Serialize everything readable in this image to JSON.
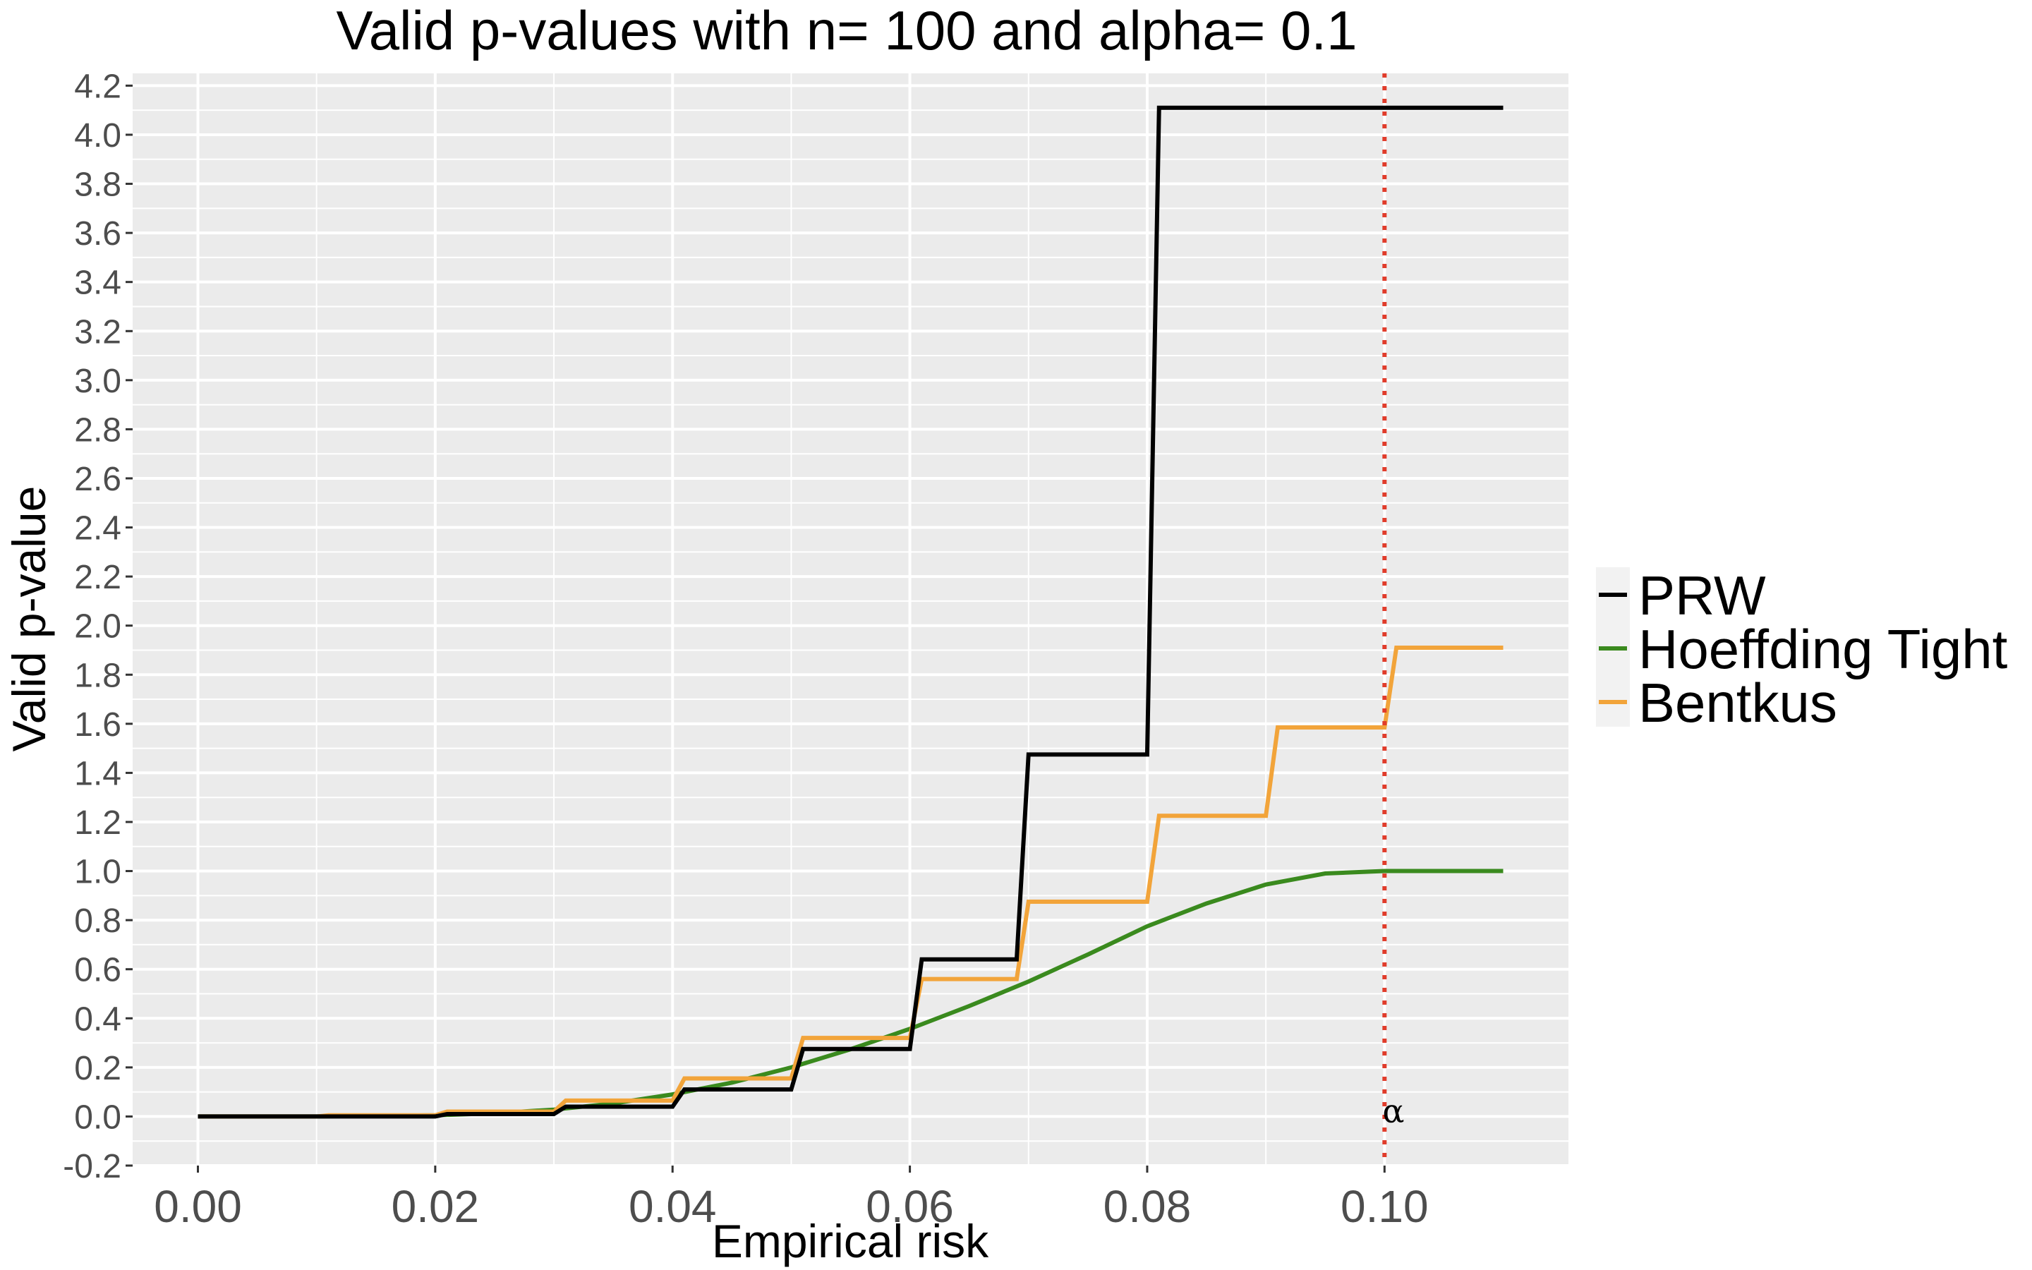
{
  "chart_data": {
    "type": "line",
    "title": "Valid p-values with n= 100  and alpha= 0.1",
    "xlabel": "Empirical risk",
    "ylabel": "Valid p-value",
    "xlim": [
      -0.0055,
      0.1155
    ],
    "ylim": [
      -0.2,
      4.25
    ],
    "x_ticks": [
      0.0,
      0.02,
      0.04,
      0.06,
      0.08,
      0.1
    ],
    "x_tick_labels": [
      "0.00",
      "0.02",
      "0.04",
      "0.06",
      "0.08",
      "0.10"
    ],
    "y_ticks": [
      -0.2,
      0.0,
      0.2,
      0.4,
      0.6,
      0.8,
      1.0,
      1.2,
      1.4,
      1.6,
      1.8,
      2.0,
      2.2,
      2.4,
      2.6,
      2.8,
      3.0,
      3.2,
      3.4,
      3.6,
      3.8,
      4.0,
      4.2
    ],
    "y_tick_labels": [
      "-0.2",
      "0.0",
      "0.2",
      "0.4",
      "0.6",
      "0.8",
      "1.0",
      "1.2",
      "1.4",
      "1.6",
      "1.8",
      "2.0",
      "2.2",
      "2.4",
      "2.6",
      "2.8",
      "3.0",
      "3.2",
      "3.4",
      "3.6",
      "3.8",
      "4.0",
      "4.2"
    ],
    "grid": true,
    "legend_position": "right",
    "series": [
      {
        "name": "PRW",
        "color": "#000000",
        "x": [
          0.0,
          0.02,
          0.021,
          0.03,
          0.031,
          0.04,
          0.041,
          0.05,
          0.051,
          0.06,
          0.061,
          0.069,
          0.07,
          0.08,
          0.081,
          0.11
        ],
        "y": [
          0.0,
          0.0,
          0.01,
          0.01,
          0.04,
          0.04,
          0.11,
          0.11,
          0.275,
          0.275,
          0.64,
          0.64,
          1.475,
          1.475,
          4.11,
          4.11
        ]
      },
      {
        "name": "Hoeffding Tight",
        "color": "#3a8a1e",
        "x": [
          0.0,
          0.01,
          0.02,
          0.025,
          0.03,
          0.035,
          0.04,
          0.045,
          0.05,
          0.055,
          0.06,
          0.065,
          0.07,
          0.075,
          0.08,
          0.085,
          0.09,
          0.095,
          0.1,
          0.11
        ],
        "y": [
          0.0,
          0.0,
          0.005,
          0.013,
          0.028,
          0.053,
          0.09,
          0.138,
          0.2,
          0.274,
          0.357,
          0.45,
          0.55,
          0.66,
          0.775,
          0.868,
          0.945,
          0.99,
          1.0,
          1.0
        ]
      },
      {
        "name": "Bentkus",
        "color": "#f2a43a",
        "x": [
          0.0,
          0.01,
          0.011,
          0.02,
          0.021,
          0.03,
          0.031,
          0.04,
          0.041,
          0.05,
          0.051,
          0.06,
          0.061,
          0.069,
          0.07,
          0.08,
          0.081,
          0.09,
          0.091,
          0.1,
          0.101,
          0.11
        ],
        "y": [
          0.0,
          0.0,
          0.005,
          0.005,
          0.02,
          0.02,
          0.065,
          0.065,
          0.155,
          0.155,
          0.32,
          0.32,
          0.56,
          0.56,
          0.875,
          0.875,
          1.225,
          1.225,
          1.585,
          1.585,
          1.91,
          1.91
        ]
      }
    ],
    "vline": {
      "x": 0.1,
      "color": "#e03c2b",
      "style": "dotted",
      "label": "α"
    },
    "legend": [
      "PRW",
      "Hoeffding Tight",
      "Bentkus"
    ],
    "panel_background": "#ebebeb",
    "grid_color": "#ffffff"
  }
}
